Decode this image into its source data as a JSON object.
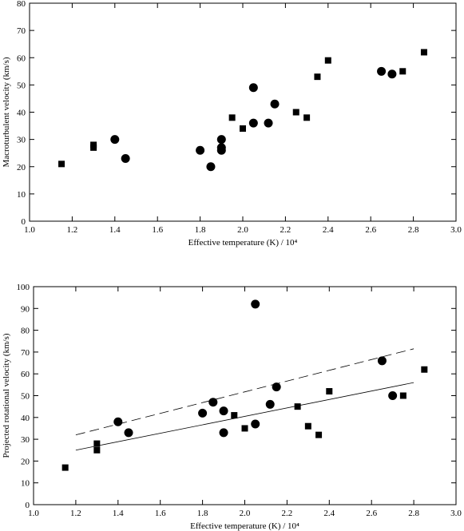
{
  "chart_data": [
    {
      "type": "scatter",
      "xlabel": "Effective temperature (K) / 10⁴",
      "ylabel": "Macroturbulent velocity (km/s)",
      "xlim": [
        1.0,
        3.0
      ],
      "xticks": [
        {
          "value": 1,
          "label": "1.0"
        },
        1.2,
        1.4,
        1.6,
        1.8,
        {
          "value": 2,
          "label": "2.0"
        },
        2.2,
        2.4,
        2.6,
        2.8,
        {
          "value": 3,
          "label": "3.0"
        }
      ],
      "ylim": [
        0,
        80
      ],
      "yticks": [
        0,
        10,
        20,
        30,
        40,
        50,
        60,
        70,
        80
      ],
      "series": [
        {
          "marker": "square",
          "color": "#000000",
          "x": [
            1.15,
            1.3,
            1.3,
            1.95,
            2.0,
            2.25,
            2.3,
            2.35,
            2.4,
            2.75,
            2.85
          ],
          "values": [
            21,
            28,
            27,
            38,
            34,
            40,
            38,
            53,
            59,
            55,
            62
          ]
        },
        {
          "marker": "circle",
          "color": "#000000",
          "x": [
            1.4,
            1.45,
            1.8,
            1.85,
            1.9,
            1.9,
            1.9,
            2.05,
            2.05,
            2.12,
            2.15,
            2.65,
            2.7
          ],
          "values": [
            30,
            23,
            26,
            20,
            30,
            27,
            26,
            49,
            36,
            36,
            43,
            55,
            54
          ]
        }
      ]
    },
    {
      "type": "scatter",
      "xlabel": "Effective temperature (K) / 10⁴",
      "ylabel": "Projected rotational velocity (km/s)",
      "xlim": [
        1.0,
        3.0
      ],
      "xticks": [
        {
          "value": 1,
          "label": "1.0"
        },
        1.2,
        1.4,
        1.6,
        1.8,
        {
          "value": 2,
          "label": "2.0"
        },
        2.2,
        2.4,
        2.6,
        2.8,
        {
          "value": 3,
          "label": "3.0"
        }
      ],
      "ylim": [
        0,
        100
      ],
      "yticks": [
        0,
        10,
        20,
        30,
        40,
        50,
        60,
        70,
        80,
        90,
        100
      ],
      "series": [
        {
          "marker": "square",
          "color": "#000000",
          "x": [
            1.15,
            1.3,
            1.3,
            1.95,
            2.0,
            2.25,
            2.3,
            2.35,
            2.4,
            2.75,
            2.85
          ],
          "values": [
            17,
            28,
            25,
            41,
            35,
            45,
            36,
            32,
            52,
            50,
            62
          ]
        },
        {
          "marker": "circle",
          "color": "#000000",
          "x": [
            1.4,
            1.45,
            1.8,
            1.85,
            1.9,
            1.9,
            2.05,
            2.05,
            2.12,
            2.15,
            2.65,
            2.7
          ],
          "values": [
            38,
            33,
            42,
            47,
            43,
            33,
            92,
            37,
            46,
            54,
            66,
            50
          ]
        },
        {
          "marker": "line",
          "dash": false,
          "color": "#000000",
          "x": [
            1.2,
            2.8
          ],
          "values": [
            25,
            56
          ]
        },
        {
          "marker": "line",
          "dash": true,
          "color": "#000000",
          "x": [
            1.2,
            2.8
          ],
          "values": [
            32,
            71.5
          ]
        }
      ]
    }
  ]
}
